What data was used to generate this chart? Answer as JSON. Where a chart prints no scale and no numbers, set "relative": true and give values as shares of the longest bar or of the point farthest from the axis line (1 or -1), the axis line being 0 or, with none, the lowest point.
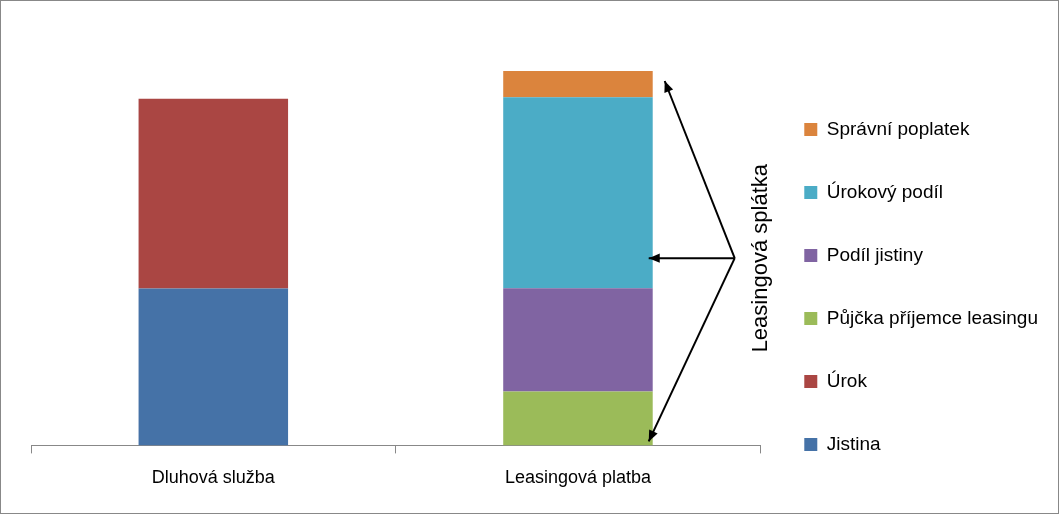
{
  "chart_data": {
    "type": "bar",
    "stacked": true,
    "relative": true,
    "legend": "right",
    "categories": [
      "Dluhová služba",
      "Leasingová platba"
    ],
    "series": [
      {
        "name": "Jistina",
        "color": "#4572a7",
        "values": [
          0.419,
          null
        ]
      },
      {
        "name": "Úrok",
        "color": "#aa4643",
        "values": [
          0.507,
          null
        ]
      },
      {
        "name": "Půjčka příjemce leasingu",
        "color": "#9bbb59",
        "values": [
          null,
          0.144
        ]
      },
      {
        "name": "Podíl jistiny",
        "color": "#8064a2",
        "values": [
          null,
          0.276
        ]
      },
      {
        "name": "Úrokový podíl",
        "color": "#4bacc6",
        "values": [
          null,
          0.51
        ]
      },
      {
        "name": "Správní poplatek",
        "color": "#db843d",
        "values": [
          null,
          0.07
        ]
      }
    ],
    "annotations": [
      "Leasingová splátka"
    ]
  }
}
